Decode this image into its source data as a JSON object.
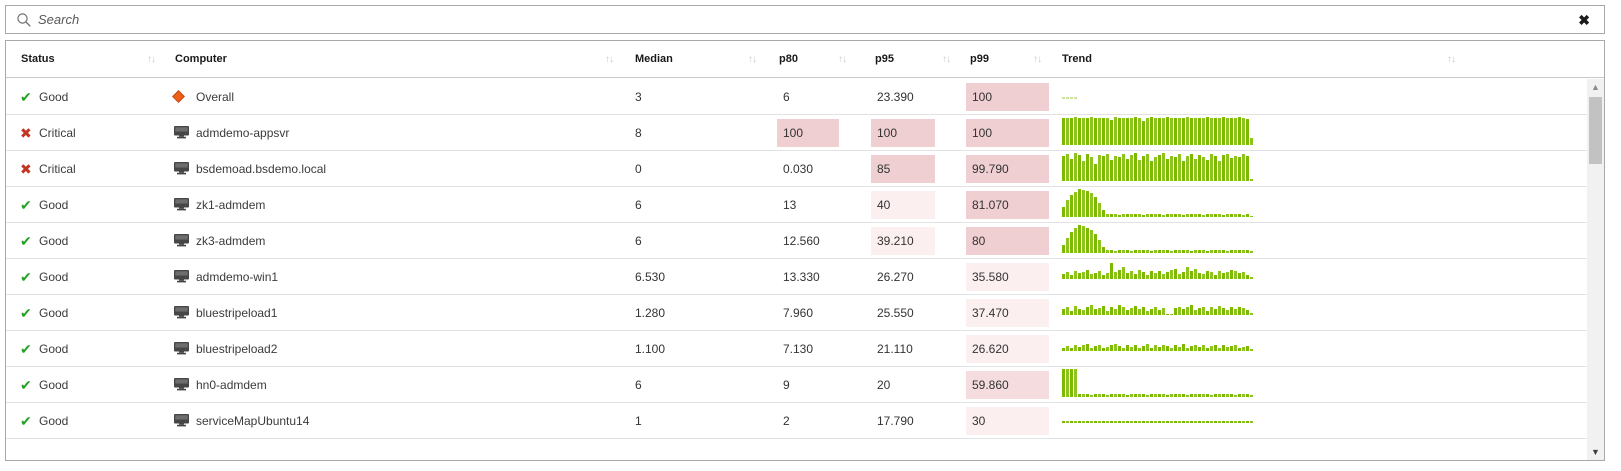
{
  "search": {
    "placeholder": "Search"
  },
  "icons": {
    "good": "✔",
    "critical": "✖",
    "sort": "↑↓",
    "close": "✖",
    "scroll_up": "▲",
    "scroll_down": "▼",
    "overall": "diamond-icon",
    "computer": "monitor-icon",
    "search": "magnifier-icon"
  },
  "colors": {
    "status_good": "#26a126",
    "status_critical": "#c23522",
    "trend_bar": "#7cb900",
    "trend_bar_pale": "#cfe3a0",
    "highlight_strong": "#f0cfd2",
    "highlight_medium": "#f5dcde",
    "highlight_light": "#fbeff0"
  },
  "table": {
    "columns": [
      {
        "label": "Status"
      },
      {
        "label": "Computer"
      },
      {
        "label": "Median"
      },
      {
        "label": "p80"
      },
      {
        "label": "p95"
      },
      {
        "label": "p99"
      },
      {
        "label": "Trend"
      }
    ],
    "rows": [
      {
        "status": "Good",
        "status_kind": "good",
        "computer": "Overall",
        "computer_icon": "diamond",
        "median": "3",
        "p80": {
          "v": "6",
          "h": "none"
        },
        "p95": {
          "v": "23.390",
          "h": "none"
        },
        "p99": {
          "v": "100",
          "h": "strong"
        },
        "trend": {
          "style": "pale",
          "bars": [
            6,
            6,
            6,
            6
          ]
        }
      },
      {
        "status": "Critical",
        "status_kind": "critical",
        "computer": "admdemo-appsvr",
        "computer_icon": "monitor",
        "median": "8",
        "p80": {
          "v": "100",
          "h": "strong"
        },
        "p95": {
          "v": "100",
          "h": "strong"
        },
        "p99": {
          "v": "100",
          "h": "strong"
        },
        "trend": {
          "style": "normal",
          "bars": [
            96,
            98,
            95,
            99,
            97,
            96,
            98,
            99,
            95,
            97,
            98,
            96,
            88,
            99,
            97,
            95,
            98,
            96,
            99,
            97,
            85,
            96,
            99,
            98,
            95,
            97,
            99,
            96,
            98,
            95,
            97,
            99,
            96,
            98,
            97,
            95,
            99,
            98,
            96,
            97,
            99,
            95,
            98,
            96,
            99,
            97,
            92,
            26
          ]
        }
      },
      {
        "status": "Critical",
        "status_kind": "critical",
        "computer": "bsdemoad.bsdemo.local",
        "computer_icon": "monitor",
        "median": "0",
        "p80": {
          "v": "0.030",
          "h": "none"
        },
        "p95": {
          "v": "85",
          "h": "strong"
        },
        "p99": {
          "v": "99.790",
          "h": "strong"
        },
        "trend": {
          "style": "normal",
          "bars": [
            88,
            95,
            78,
            99,
            92,
            70,
            97,
            85,
            60,
            94,
            88,
            97,
            75,
            90,
            85,
            96,
            80,
            92,
            99,
            74,
            88,
            95,
            70,
            85,
            92,
            100,
            78,
            90,
            84,
            95,
            72,
            88,
            96,
            80,
            92,
            85,
            75,
            95,
            88,
            70,
            92,
            97,
            82,
            90,
            85,
            95,
            90,
            8
          ]
        }
      },
      {
        "status": "Good",
        "status_kind": "good",
        "computer": "zk1-admdem",
        "computer_icon": "monitor",
        "median": "6",
        "p80": {
          "v": "13",
          "h": "none"
        },
        "p95": {
          "v": "40",
          "h": "light"
        },
        "p99": {
          "v": "81.070",
          "h": "strong"
        },
        "trend": {
          "style": "normal",
          "bars": [
            35,
            60,
            78,
            90,
            100,
            97,
            92,
            85,
            72,
            50,
            25,
            10,
            9,
            11,
            8,
            10,
            12,
            9,
            11,
            10,
            8,
            12,
            9,
            10,
            11,
            8,
            10,
            12,
            9,
            11,
            8,
            10,
            9,
            12,
            10,
            8,
            11,
            9,
            10,
            12,
            8,
            10,
            11,
            9,
            10,
            8,
            11,
            5
          ]
        }
      },
      {
        "status": "Good",
        "status_kind": "good",
        "computer": "zk3-admdem",
        "computer_icon": "monitor",
        "median": "6",
        "p80": {
          "v": "12.560",
          "h": "none"
        },
        "p95": {
          "v": "39.210",
          "h": "light"
        },
        "p99": {
          "v": "80",
          "h": "strong"
        },
        "trend": {
          "style": "normal",
          "bars": [
            30,
            55,
            75,
            88,
            100,
            95,
            90,
            82,
            68,
            45,
            22,
            9,
            10,
            8,
            11,
            9,
            10,
            8,
            12,
            10,
            9,
            11,
            8,
            10,
            12,
            9,
            10,
            8,
            11,
            9,
            12,
            10,
            8,
            11,
            9,
            10,
            8,
            12,
            9,
            11,
            10,
            8,
            9,
            11,
            10,
            9,
            10,
            6
          ]
        }
      },
      {
        "status": "Good",
        "status_kind": "good",
        "computer": "admdemo-win1",
        "computer_icon": "monitor",
        "median": "6.530",
        "p80": {
          "v": "13.330",
          "h": "none"
        },
        "p95": {
          "v": "26.270",
          "h": "none"
        },
        "p99": {
          "v": "35.580",
          "h": "light"
        },
        "trend": {
          "style": "normal",
          "bars": [
            18,
            25,
            15,
            28,
            20,
            25,
            32,
            17,
            22,
            28,
            15,
            20,
            58,
            25,
            32,
            42,
            22,
            28,
            18,
            32,
            25,
            15,
            30,
            22,
            28,
            18,
            25,
            32,
            35,
            17,
            25,
            42,
            28,
            36,
            22,
            18,
            28,
            25,
            15,
            30,
            22,
            25,
            32,
            28,
            20,
            25,
            16,
            8
          ]
        }
      },
      {
        "status": "Good",
        "status_kind": "good",
        "computer": "bluestripeload1",
        "computer_icon": "monitor",
        "median": "1.280",
        "p80": {
          "v": "7.960",
          "h": "none"
        },
        "p95": {
          "v": "25.550",
          "h": "none"
        },
        "p99": {
          "v": "37.470",
          "h": "light"
        },
        "trend": {
          "style": "normal",
          "bars": [
            20,
            28,
            15,
            32,
            22,
            18,
            28,
            35,
            20,
            25,
            32,
            15,
            28,
            22,
            35,
            30,
            18,
            25,
            32,
            20,
            28,
            15,
            22,
            30,
            18,
            25,
            4,
            3,
            25,
            30,
            22,
            28,
            35,
            18,
            25,
            30,
            15,
            28,
            22,
            32,
            25,
            18,
            28,
            22,
            30,
            25,
            18,
            6
          ]
        }
      },
      {
        "status": "Good",
        "status_kind": "good",
        "computer": "bluestripeload2",
        "computer_icon": "monitor",
        "median": "1.100",
        "p80": {
          "v": "7.130",
          "h": "none"
        },
        "p95": {
          "v": "21.110",
          "h": "none"
        },
        "p99": {
          "v": "26.620",
          "h": "light"
        },
        "trend": {
          "style": "normal",
          "bars": [
            12,
            18,
            10,
            22,
            15,
            20,
            25,
            12,
            18,
            22,
            10,
            15,
            20,
            25,
            18,
            12,
            22,
            15,
            20,
            10,
            18,
            25,
            12,
            20,
            15,
            22,
            18,
            10,
            20,
            15,
            25,
            12,
            18,
            22,
            15,
            20,
            10,
            18,
            22,
            12,
            20,
            15,
            18,
            22,
            10,
            15,
            18,
            8
          ]
        }
      },
      {
        "status": "Good",
        "status_kind": "good",
        "computer": "hn0-admdem",
        "computer_icon": "monitor",
        "median": "6",
        "p80": {
          "v": "9",
          "h": "none"
        },
        "p95": {
          "v": "20",
          "h": "none"
        },
        "p99": {
          "v": "59.860",
          "h": "medium"
        },
        "trend": {
          "style": "normal",
          "bars": [
            100,
            100,
            100,
            100,
            12,
            9,
            10,
            8,
            10,
            9,
            11,
            8,
            10,
            9,
            12,
            10,
            8,
            11,
            9,
            10,
            12,
            8,
            10,
            11,
            9,
            10,
            8,
            12,
            9,
            11,
            10,
            8,
            10,
            9,
            11,
            10,
            12,
            8,
            9,
            10,
            11,
            9,
            10,
            8,
            11,
            10,
            9,
            7
          ]
        }
      },
      {
        "status": "Good",
        "status_kind": "good",
        "computer": "serviceMapUbuntu14",
        "computer_icon": "monitor",
        "median": "1",
        "p80": {
          "v": "2",
          "h": "none"
        },
        "p95": {
          "v": "17.790",
          "h": "none"
        },
        "p99": {
          "v": "30",
          "h": "light"
        },
        "trend": {
          "style": "normal",
          "bars": [
            7,
            7,
            8,
            6,
            7,
            8,
            7,
            6,
            8,
            7,
            7,
            8,
            6,
            7,
            8,
            7,
            7,
            6,
            8,
            7,
            8,
            6,
            7,
            7,
            8,
            7,
            6,
            8,
            7,
            7,
            8,
            6,
            7,
            8,
            7,
            6,
            8,
            7,
            7,
            8,
            6,
            7,
            8,
            7,
            6,
            8,
            7,
            7
          ]
        }
      }
    ]
  }
}
